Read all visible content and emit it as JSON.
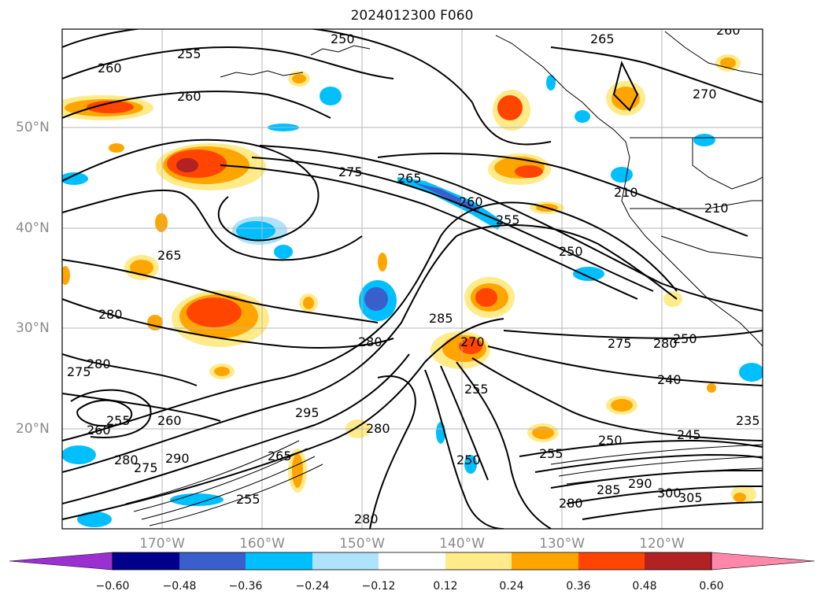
{
  "title": "2024012300 F060",
  "lat_labels": [
    "50°N",
    "40°N",
    "30°N",
    "20°N"
  ],
  "lon_labels": [
    "170°W",
    "160°W",
    "150°W",
    "140°W",
    "130°W",
    "120°W"
  ],
  "contour_labels": [
    "260",
    "255",
    "250",
    "265",
    "260",
    "260",
    "275",
    "265",
    "260",
    "255",
    "250",
    "210",
    "270",
    "210",
    "265",
    "280",
    "280",
    "275",
    "285",
    "270",
    "275",
    "280",
    "280",
    "250",
    "240",
    "255",
    "260",
    "255",
    "260",
    "280",
    "275",
    "295",
    "290",
    "280",
    "250",
    "255",
    "250",
    "255",
    "245",
    "235",
    "290",
    "285",
    "280",
    "300",
    "305",
    "280",
    "265"
  ],
  "colorbar": {
    "ticks": [
      "−0.60",
      "−0.48",
      "−0.36",
      "−0.24",
      "−0.12",
      "0.12",
      "0.24",
      "0.36",
      "0.48",
      "0.60"
    ],
    "colors": [
      "#9b30d0",
      "#00008b",
      "#3a5fcd",
      "#00bfff",
      "#aee3fb",
      "#ffffff",
      "#ffeb8a",
      "#ffa500",
      "#ff4500",
      "#b22222",
      "#ff88aa"
    ]
  }
}
